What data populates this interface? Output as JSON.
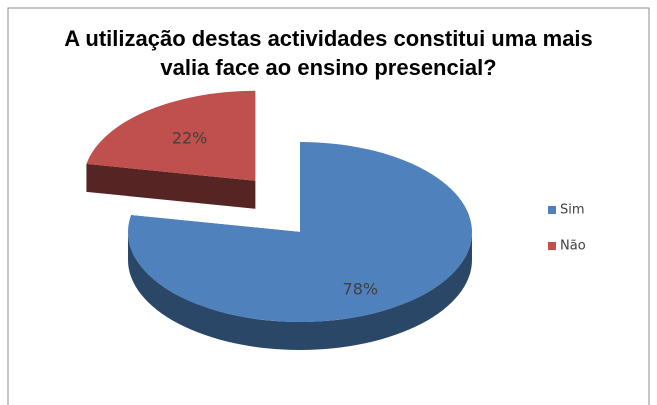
{
  "chart_data": {
    "type": "pie",
    "title": "A utilização destas actividades constitui uma mais valia face ao ensino presencial?",
    "categories": [
      "Sim",
      "Não"
    ],
    "values": [
      78,
      22
    ],
    "value_labels": [
      "78%",
      "22%"
    ],
    "colors": [
      "#4f81bd",
      "#c0504d"
    ],
    "legend": "right"
  }
}
